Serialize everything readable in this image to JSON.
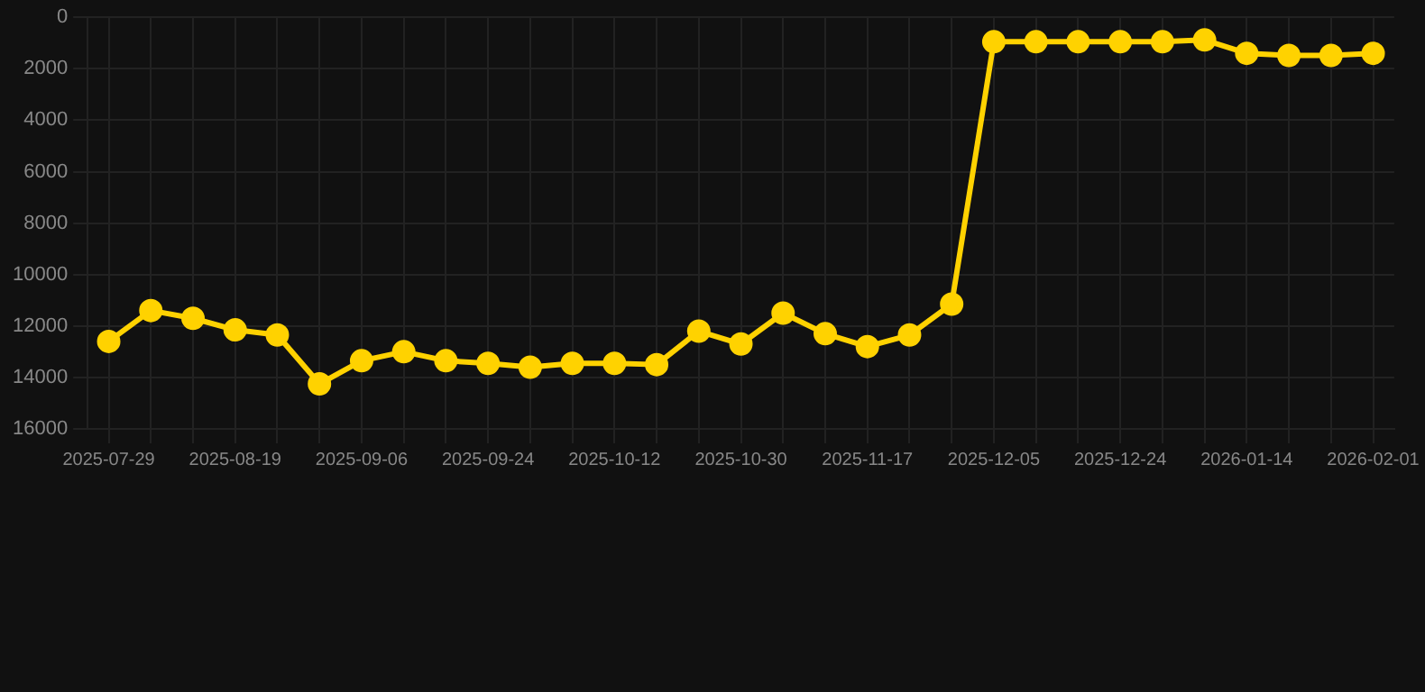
{
  "chart_data": {
    "type": "line",
    "categories": [
      "2025-07-29",
      null,
      null,
      "2025-08-19",
      null,
      null,
      "2025-09-06",
      null,
      null,
      "2025-09-24",
      null,
      null,
      "2025-10-12",
      null,
      null,
      "2025-10-30",
      null,
      null,
      "2025-11-17",
      null,
      null,
      "2025-12-05",
      null,
      null,
      "2025-12-24",
      null,
      null,
      "2026-01-14",
      null,
      null,
      "2026-02-01"
    ],
    "series": [
      {
        "color": "#ffd200",
        "values": [
          12600,
          11400,
          11700,
          12150,
          12350,
          14250,
          13350,
          13000,
          13350,
          13450,
          13600,
          13450,
          13450,
          13500,
          12200,
          12700,
          11500,
          12300,
          12800,
          12350,
          11150,
          950,
          950,
          950,
          950,
          950,
          880,
          1400,
          1480,
          1480,
          1400
        ]
      }
    ],
    "ylim": [
      16000,
      0
    ],
    "yticks": [
      0,
      2000,
      4000,
      6000,
      8000,
      10000,
      12000,
      14000,
      16000
    ],
    "grid": true,
    "legend": false,
    "marker": "circle",
    "line_style": "solid"
  }
}
